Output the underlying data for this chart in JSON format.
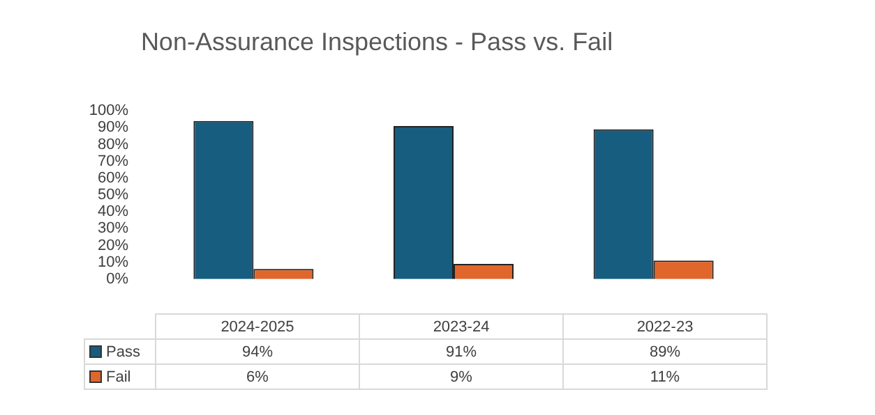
{
  "chart_data": {
    "type": "bar",
    "title": "Non-Assurance Inspections - Pass vs. Fail",
    "categories": [
      "2024-2025",
      "2023-24",
      "2022-23"
    ],
    "series": [
      {
        "name": "Pass",
        "color": "#175d80",
        "values": [
          94,
          91,
          89
        ],
        "value_labels": [
          "94%",
          "91%",
          "89%"
        ]
      },
      {
        "name": "Fail",
        "color": "#e0662c",
        "values": [
          6,
          9,
          11
        ],
        "value_labels": [
          "6%",
          "9%",
          "11%"
        ]
      }
    ],
    "ylim": [
      0,
      100
    ],
    "yticks": [
      {
        "value": 0,
        "label": "0%"
      },
      {
        "value": 10,
        "label": "10%"
      },
      {
        "value": 20,
        "label": "20%"
      },
      {
        "value": 30,
        "label": "30%"
      },
      {
        "value": 40,
        "label": "40%"
      },
      {
        "value": 50,
        "label": "50%"
      },
      {
        "value": 60,
        "label": "60%"
      },
      {
        "value": 70,
        "label": "70%"
      },
      {
        "value": 80,
        "label": "80%"
      },
      {
        "value": 90,
        "label": "90%"
      },
      {
        "value": 100,
        "label": "100%"
      }
    ],
    "grid": false,
    "legend": "bottom"
  }
}
